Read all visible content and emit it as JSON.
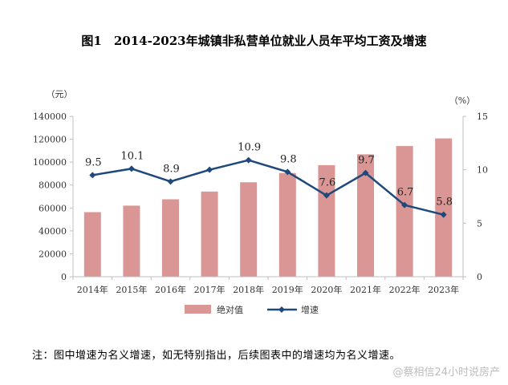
{
  "chart_data": {
    "type": "bar",
    "title": "图1　2014-2023年城镇非私营单位就业人员年平均工资及增速",
    "categories": [
      "2014年",
      "2015年",
      "2016年",
      "2017年",
      "2018年",
      "2019年",
      "2020年",
      "2021年",
      "2022年",
      "2023年"
    ],
    "series": [
      {
        "name": "绝对值",
        "type": "bar",
        "axis": "left",
        "color": "#d99694",
        "values": [
          56360,
          62029,
          67569,
          74318,
          82413,
          90501,
          97379,
          106837,
          114029,
          120698
        ]
      },
      {
        "name": "增速",
        "type": "line",
        "axis": "right",
        "color": "#1f497d",
        "values": [
          9.5,
          10.1,
          8.9,
          10.0,
          10.9,
          9.8,
          7.6,
          9.7,
          6.7,
          5.8
        ],
        "data_labels": [
          "9.5",
          "10.1",
          "8.9",
          "",
          "10.9",
          "9.8",
          "7.6",
          "9.7",
          "6.7",
          "5.8"
        ]
      }
    ],
    "y_left": {
      "unit": "（元）",
      "ylim": [
        0,
        140000
      ],
      "ticks": [
        "0",
        "20000",
        "40000",
        "60000",
        "80000",
        "100000",
        "120000",
        "140000"
      ]
    },
    "y_right": {
      "unit": "（%）",
      "ylim": [
        0,
        15
      ],
      "ticks": [
        "0",
        "5",
        "10",
        "15"
      ]
    },
    "legend_position": "bottom",
    "grid": false
  },
  "footnote": "注：图中增速为名义增速，如无特别指出，后续图表中的增速均为名义增速。",
  "watermark": "@蔡相信24小时说房产"
}
